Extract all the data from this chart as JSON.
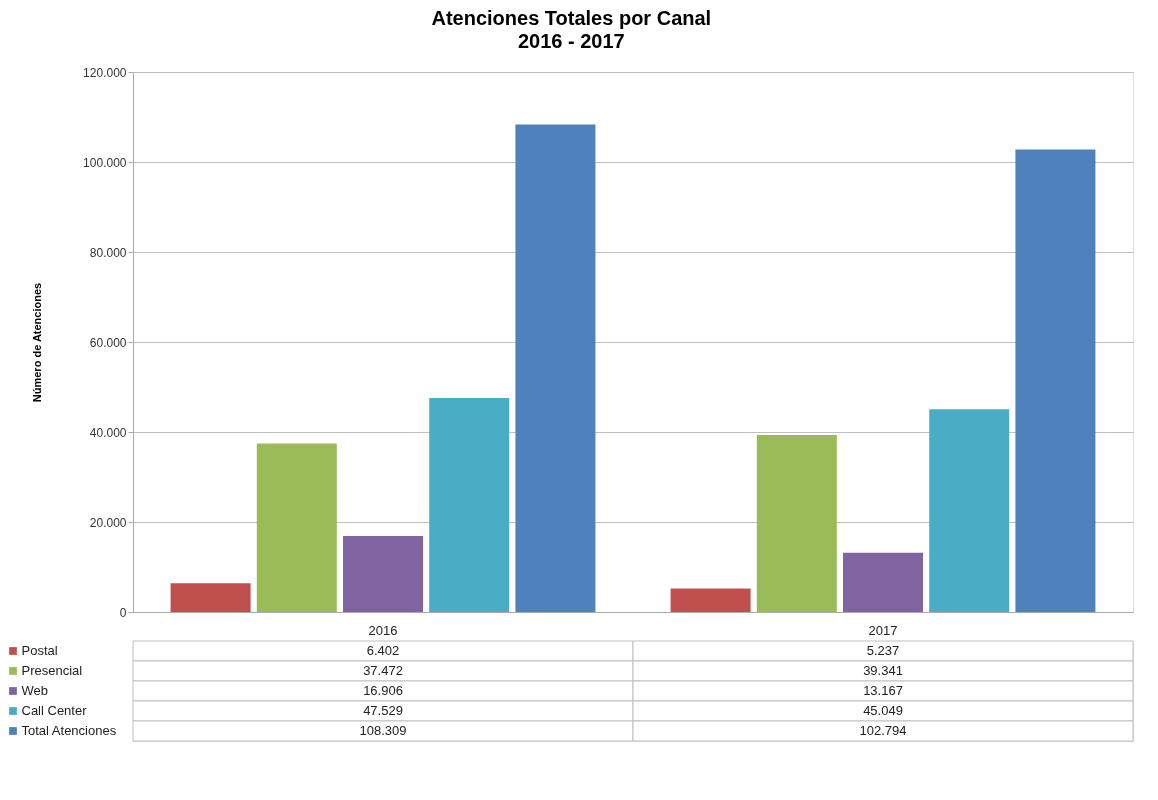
{
  "chart_data": {
    "type": "bar",
    "title": "Atenciones Totales por Canal",
    "subtitle": "2016 - 2017",
    "ylabel": "Número de Atenciones",
    "categories": [
      "2016",
      "2017"
    ],
    "series": [
      {
        "name": "Postal",
        "color": "#c0504d",
        "values": [
          6402,
          5237
        ],
        "value_labels": [
          "6.402",
          "5.237"
        ]
      },
      {
        "name": "Presencial",
        "color": "#9bbb59",
        "values": [
          37472,
          39341
        ],
        "value_labels": [
          "37.472",
          "39.341"
        ]
      },
      {
        "name": "Web",
        "color": "#8064a2",
        "values": [
          16906,
          13167
        ],
        "value_labels": [
          "16.906",
          "13.167"
        ]
      },
      {
        "name": "Call Center",
        "color": "#4bacc6",
        "values": [
          47529,
          45049
        ],
        "value_labels": [
          "47.529",
          "45.049"
        ]
      },
      {
        "name": "Total Atenciones",
        "color": "#4f81bd",
        "values": [
          108309,
          102794
        ],
        "value_labels": [
          "108.309",
          "102.794"
        ]
      }
    ],
    "ylim": [
      0,
      120000
    ],
    "yticks": [
      {
        "value": 0,
        "label": "0"
      },
      {
        "value": 20000,
        "label": "20.000"
      },
      {
        "value": 40000,
        "label": "40.000"
      },
      {
        "value": 60000,
        "label": "60.000"
      },
      {
        "value": 80000,
        "label": "80.000"
      },
      {
        "value": 100000,
        "label": "100.000"
      },
      {
        "value": 120000,
        "label": "120.000"
      }
    ],
    "grid": "y",
    "legend": "bottom"
  }
}
